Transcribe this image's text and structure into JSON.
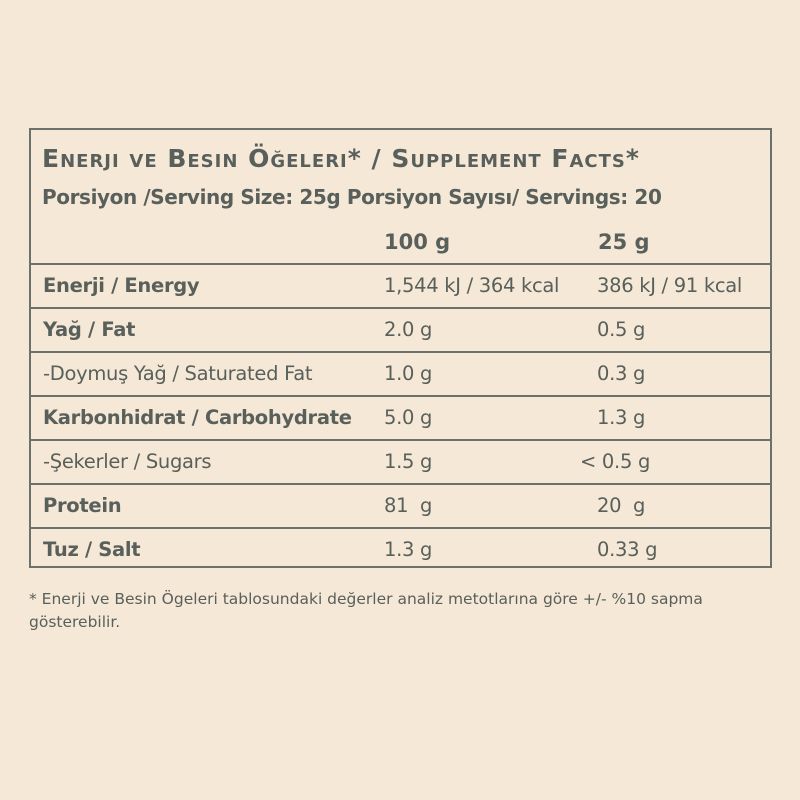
{
  "title": "Enerji ve Besin Öğeleri* / Supplement Facts*",
  "serving": "Porsiyon /Serving Size: 25g Porsiyon Sayısı/ Servings: 20",
  "columns": {
    "per100": "100 g",
    "per25": "25 g"
  },
  "rows": [
    {
      "label": "Enerji / Energy",
      "v100": "1,544 kJ / 364 kcal",
      "v25": "386 kJ / 91 kcal",
      "bold": true
    },
    {
      "label": "Yağ / Fat",
      "v100": "2.0 g",
      "v25": "0.5 g",
      "bold": true
    },
    {
      "label": "-Doymuş Yağ / Saturated Fat",
      "v100": "1.0 g",
      "v25": "0.3 g",
      "bold": false
    },
    {
      "label": "Karbonhidrat / Carbohydrate",
      "v100": "5.0 g",
      "v25": "1.3 g",
      "bold": true
    },
    {
      "label": "-Şekerler / Sugars",
      "v100": "1.5 g",
      "v25": "< 0.5 g",
      "bold": false
    },
    {
      "label": "Protein",
      "v100": "81  g",
      "v25": "20  g",
      "bold": true
    },
    {
      "label": "Tuz / Salt",
      "v100": "1.3 g",
      "v25": "0.33 g",
      "bold": true
    }
  ],
  "footnote": "* Enerji ve Besin Ögeleri tablosundaki değerler analiz metotlarına göre +/- %10 sapma gösterebilir.",
  "colors": {
    "background": "#f5e8d7",
    "text": "#59605b",
    "border": "#6b716c"
  }
}
